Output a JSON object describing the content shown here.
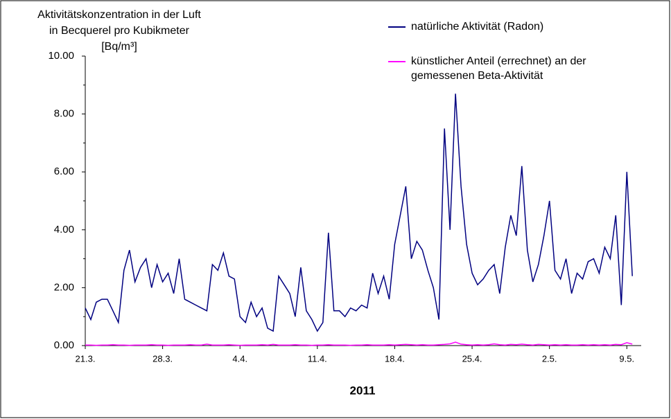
{
  "chart_data": {
    "type": "line",
    "ylabel": [
      "Aktivitätskonzentration in der Luft",
      "in Becquerel pro Kubikmeter",
      "[Bq/m³]"
    ],
    "xlabel": "2011",
    "x": [
      0,
      0.5,
      1,
      1.5,
      2,
      2.5,
      3,
      3.5,
      4,
      4.5,
      5,
      5.5,
      6,
      6.5,
      7,
      7.5,
      8,
      8.5,
      9,
      9.5,
      10,
      10.5,
      11,
      11.5,
      12,
      12.5,
      13,
      13.5,
      14,
      14.5,
      15,
      15.5,
      16,
      16.5,
      17,
      17.5,
      18,
      18.5,
      19,
      19.5,
      20,
      20.5,
      21,
      21.5,
      22,
      22.5,
      23,
      23.5,
      24,
      24.5,
      25,
      25.5,
      26,
      26.5,
      27,
      27.5,
      28,
      28.5,
      29,
      29.5,
      30,
      30.5,
      31,
      31.5,
      32,
      32.5,
      33,
      33.5,
      34,
      34.5,
      35,
      35.5,
      36,
      36.5,
      37,
      37.5,
      38,
      38.5,
      39,
      39.5,
      40,
      40.5,
      41,
      41.5,
      42,
      42.5,
      43,
      43.5,
      44,
      44.5,
      45,
      45.5,
      46,
      46.5,
      47,
      47.5,
      48,
      48.5,
      49,
      49.5
    ],
    "series": [
      {
        "name": "natürliche Aktivität (Radon)",
        "color": "#000080",
        "values": [
          1.3,
          0.9,
          1.5,
          1.6,
          1.6,
          1.2,
          0.8,
          2.6,
          3.3,
          2.2,
          2.7,
          3.0,
          2.0,
          2.8,
          2.2,
          2.5,
          1.8,
          3.0,
          1.6,
          1.5,
          1.4,
          1.3,
          1.2,
          2.8,
          2.6,
          3.2,
          2.4,
          2.3,
          1.0,
          0.8,
          1.5,
          1.0,
          1.3,
          0.6,
          0.5,
          2.4,
          2.1,
          1.8,
          1.0,
          2.7,
          1.2,
          0.9,
          0.5,
          0.8,
          3.9,
          1.2,
          1.2,
          1.0,
          1.3,
          1.2,
          1.4,
          1.3,
          2.5,
          1.8,
          2.4,
          1.6,
          3.5,
          4.5,
          5.5,
          3.0,
          3.6,
          3.3,
          2.6,
          2.0,
          0.9,
          7.5,
          4.0,
          8.7,
          5.5,
          3.5,
          2.5,
          2.1,
          2.3,
          2.6,
          2.8,
          1.8,
          3.4,
          4.5,
          3.8,
          6.2,
          3.3,
          2.2,
          2.8,
          3.8,
          5.0,
          2.6,
          2.3,
          3.0,
          1.8,
          2.5,
          2.3,
          2.9,
          3.0,
          2.5,
          3.4,
          3.0,
          4.5,
          1.4,
          6.0,
          2.4
        ]
      },
      {
        "name": "künstlicher Anteil (errechnet) an der gemessenen Beta-Aktivität",
        "color": "#ff00ff",
        "values": [
          0.02,
          0.02,
          0.01,
          0.02,
          0.02,
          0.03,
          0.02,
          0.02,
          0.01,
          0.02,
          0.02,
          0.02,
          0.03,
          0.02,
          0.02,
          0.01,
          0.02,
          0.02,
          0.02,
          0.03,
          0.02,
          0.02,
          0.05,
          0.02,
          0.02,
          0.02,
          0.03,
          0.02,
          0.01,
          0.02,
          0.02,
          0.02,
          0.03,
          0.02,
          0.04,
          0.02,
          0.02,
          0.02,
          0.03,
          0.02,
          0.02,
          0.01,
          0.02,
          0.02,
          0.03,
          0.02,
          0.02,
          0.02,
          0.01,
          0.02,
          0.02,
          0.03,
          0.02,
          0.02,
          0.02,
          0.03,
          0.02,
          0.03,
          0.04,
          0.03,
          0.02,
          0.03,
          0.02,
          0.02,
          0.03,
          0.04,
          0.06,
          0.12,
          0.05,
          0.03,
          0.02,
          0.03,
          0.02,
          0.03,
          0.06,
          0.03,
          0.02,
          0.04,
          0.03,
          0.05,
          0.03,
          0.02,
          0.04,
          0.03,
          0.02,
          0.03,
          0.02,
          0.03,
          0.02,
          0.02,
          0.03,
          0.02,
          0.03,
          0.02,
          0.03,
          0.02,
          0.04,
          0.03,
          0.1,
          0.05
        ]
      }
    ],
    "xlim": [
      0,
      50.3
    ],
    "xticks": [
      {
        "value": 0,
        "label": "21.3."
      },
      {
        "value": 7,
        "label": "28.3."
      },
      {
        "value": 14,
        "label": "4.4."
      },
      {
        "value": 21,
        "label": "11.4."
      },
      {
        "value": 28,
        "label": "18.4."
      },
      {
        "value": 35,
        "label": "25.4."
      },
      {
        "value": 42,
        "label": "2.5."
      },
      {
        "value": 49,
        "label": "9.5."
      }
    ],
    "ylim": [
      0,
      10
    ],
    "yticks": [
      {
        "value": 0,
        "label": "0.00"
      },
      {
        "value": 2,
        "label": "2.00"
      },
      {
        "value": 4,
        "label": "4.00"
      },
      {
        "value": 6,
        "label": "6.00"
      },
      {
        "value": 8,
        "label": "8.00"
      },
      {
        "value": 10,
        "label": "10.00"
      }
    ],
    "legend": "top-right"
  }
}
